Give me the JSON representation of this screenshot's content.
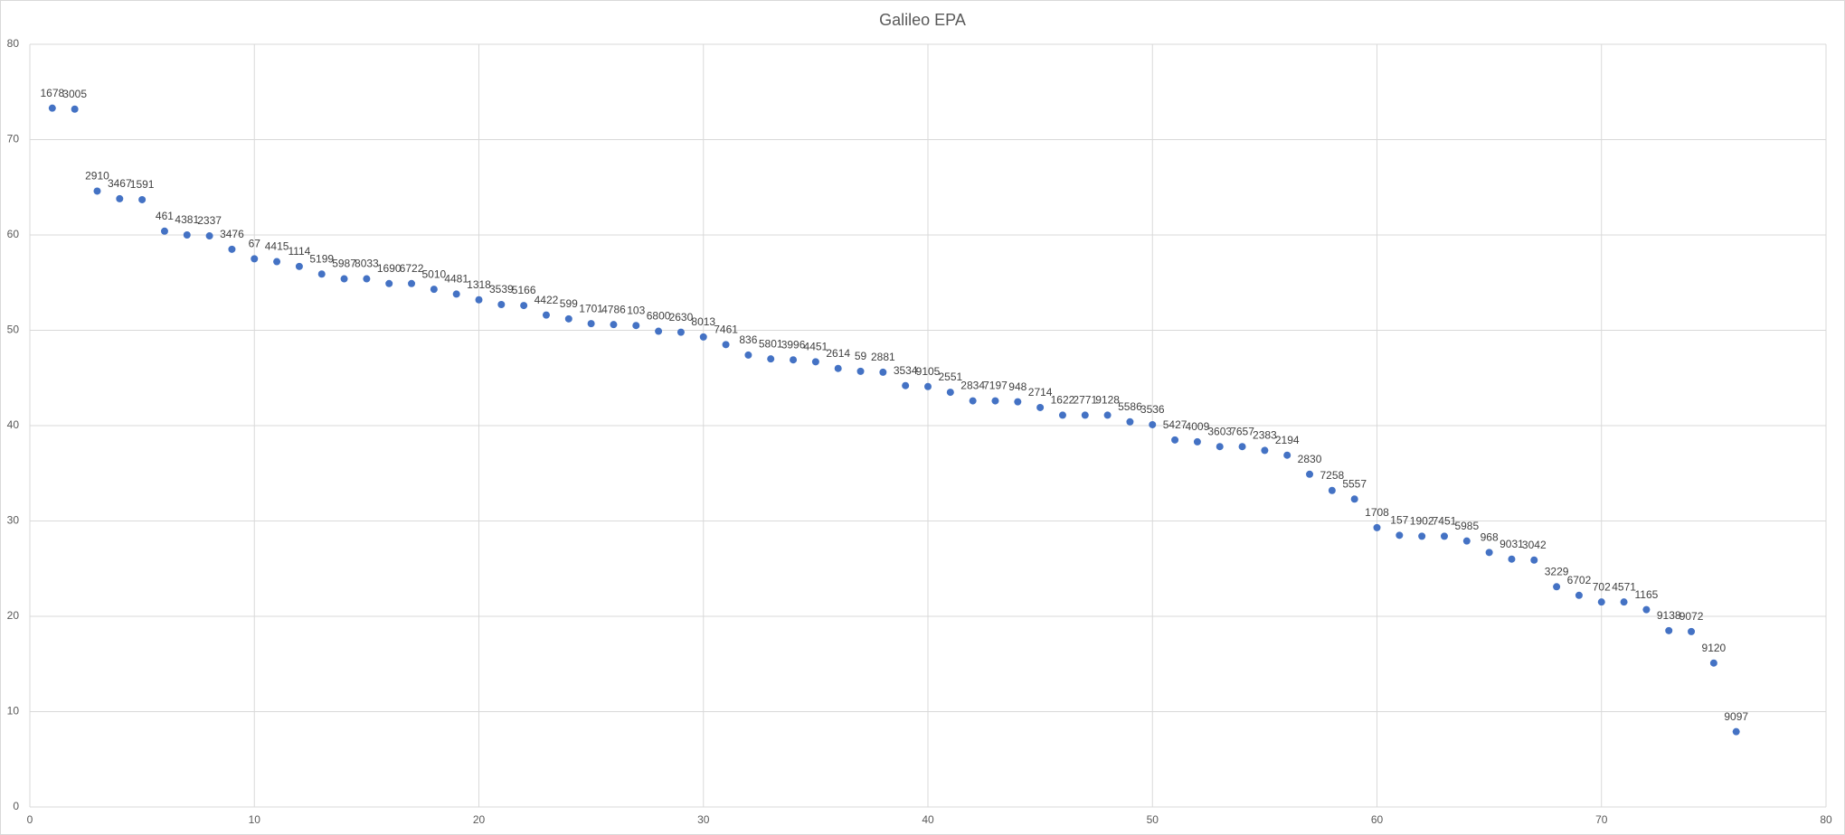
{
  "chart_data": {
    "type": "scatter",
    "title": "Galileo EPA",
    "x": [
      1,
      2,
      3,
      4,
      5,
      6,
      7,
      8,
      9,
      10,
      11,
      12,
      13,
      14,
      15,
      16,
      17,
      18,
      19,
      20,
      21,
      22,
      23,
      24,
      25,
      26,
      27,
      28,
      29,
      30,
      31,
      32,
      33,
      34,
      35,
      36,
      37,
      38,
      39,
      40,
      41,
      42,
      43,
      44,
      45,
      46,
      47,
      48,
      49,
      50,
      51,
      52,
      53,
      54,
      55,
      56,
      57,
      58,
      59,
      60,
      61,
      62,
      63,
      64,
      65,
      66,
      67,
      68,
      69,
      70,
      71,
      72,
      73,
      74,
      75,
      76
    ],
    "values": [
      73.3,
      73.2,
      64.6,
      63.8,
      63.7,
      60.4,
      60.0,
      59.9,
      58.5,
      57.5,
      57.2,
      56.7,
      55.9,
      55.4,
      55.4,
      54.9,
      54.9,
      54.3,
      53.8,
      53.2,
      52.7,
      52.6,
      51.6,
      51.2,
      50.7,
      50.6,
      50.5,
      49.9,
      49.8,
      49.3,
      48.5,
      47.4,
      47.0,
      46.9,
      46.7,
      46.0,
      45.7,
      45.6,
      44.2,
      44.1,
      43.5,
      42.6,
      42.6,
      42.5,
      41.9,
      41.1,
      41.1,
      41.1,
      40.4,
      40.1,
      38.5,
      38.3,
      37.8,
      37.8,
      37.4,
      36.9,
      34.9,
      33.2,
      32.3,
      29.3,
      28.5,
      28.4,
      28.4,
      27.9,
      26.7,
      26.0,
      25.9,
      23.1,
      22.2,
      21.5,
      21.5,
      20.7,
      18.5,
      18.4,
      15.1,
      7.9
    ],
    "point_labels": [
      "1678",
      "3005",
      "2910",
      "3467",
      "1591",
      "461",
      "4381",
      "2337",
      "3476",
      "67",
      "4415",
      "1114",
      "5199",
      "5987",
      "8033",
      "1690",
      "6722",
      "5010",
      "4481",
      "1318",
      "3539",
      "5166",
      "4422",
      "599",
      "1701",
      "4786",
      "103",
      "6800",
      "2630",
      "8013",
      "7461",
      "836",
      "5801",
      "3996",
      "4451",
      "2614",
      "59",
      "2881",
      "3534",
      "9105",
      "2551",
      "2834",
      "7197",
      "948",
      "2714",
      "1622",
      "2771",
      "9128",
      "5586",
      "3536",
      "5427",
      "4009",
      "3603",
      "7657",
      "2383",
      "2194",
      "2830",
      "7258",
      "5557",
      "1708",
      "157",
      "1902",
      "7451",
      "5985",
      "968",
      "9031",
      "3042",
      "3229",
      "6702",
      "702",
      "4571",
      "1165",
      "9138",
      "9072",
      "9120",
      "9097"
    ],
    "color": "#4472c4",
    "xlim": [
      0,
      80
    ],
    "xticks": [
      0,
      10,
      20,
      30,
      40,
      50,
      60,
      70,
      80
    ],
    "ylim": [
      0,
      80
    ],
    "yticks": [
      0,
      10,
      20,
      30,
      40,
      50,
      60,
      70,
      80
    ],
    "grid": true
  }
}
